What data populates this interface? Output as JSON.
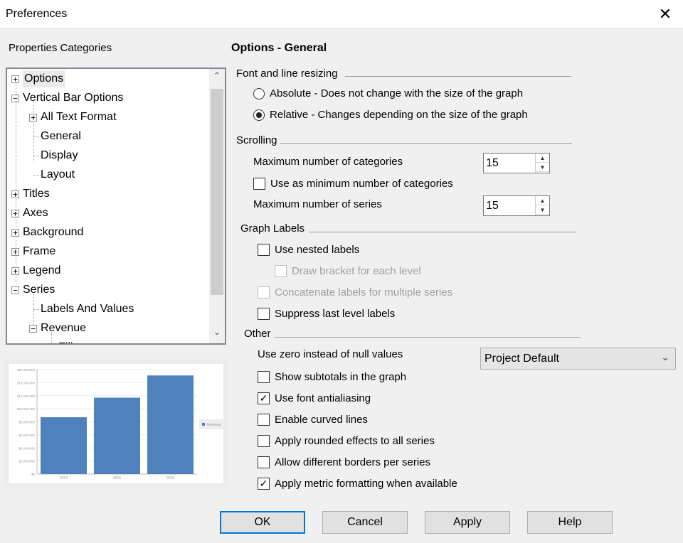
{
  "window": {
    "title": "Preferences"
  },
  "left": {
    "categories_label": "Properties Categories",
    "tree": [
      {
        "label": "Options",
        "expander": "+",
        "selected": true
      },
      {
        "label": "Vertical Bar Options",
        "expander": "-"
      },
      {
        "label": "All Text Format",
        "expander": "+"
      },
      {
        "label": "General"
      },
      {
        "label": "Display"
      },
      {
        "label": "Layout"
      },
      {
        "label": "Titles",
        "expander": "+"
      },
      {
        "label": "Axes",
        "expander": "+"
      },
      {
        "label": "Background",
        "expander": "+"
      },
      {
        "label": "Frame",
        "expander": "+"
      },
      {
        "label": "Legend",
        "expander": "+"
      },
      {
        "label": "Series",
        "expander": "-"
      },
      {
        "label": "Labels And Values"
      },
      {
        "label": "Revenue",
        "expander": "-"
      },
      {
        "label": "Fill"
      }
    ]
  },
  "preview_chart": {
    "type": "bar",
    "categories": [
      "2014",
      "2015",
      "2016"
    ],
    "series": [
      {
        "name": "Revenue",
        "values": [
          8700000,
          11700000,
          15100000
        ]
      }
    ],
    "yticks": [
      "$0",
      "$2,000,000",
      "$4,000,000",
      "$6,000,000",
      "$8,000,000",
      "$10,000,000",
      "$12,000,000",
      "$14,000,000",
      "$16,000,000"
    ],
    "ylim": [
      0,
      16000000
    ],
    "color": "#4f81bd",
    "legend": "right"
  },
  "right": {
    "heading": "Options - General",
    "font_section": "Font and line resizing",
    "radio_absolute": "Absolute - Does not change with the size of the graph",
    "radio_relative": "Relative - Changes depending on the size of the graph",
    "scrolling_section": "Scrolling",
    "max_categories_label": "Maximum number of categories",
    "max_categories_value": "15",
    "use_min_label": "Use as minimum number of categories",
    "max_series_label": "Maximum number of series",
    "max_series_value": "15",
    "graph_labels_section": "Graph Labels",
    "nested_label": "Use nested labels",
    "bracket_label": "Draw bracket for each level",
    "concat_label": "Concatenate labels for multiple series",
    "suppress_label": "Suppress last level labels",
    "other_section": "Other",
    "zero_null_label": "Use zero instead of null values",
    "zero_null_value": "Project Default",
    "subtotals_label": "Show subtotals in the graph",
    "antialias_label": "Use font antialiasing",
    "curved_label": "Enable curved lines",
    "rounded_label": "Apply rounded effects to all series",
    "borders_label": "Allow different borders per series",
    "metric_label": "Apply metric formatting when available"
  },
  "buttons": {
    "ok": "OK",
    "cancel": "Cancel",
    "apply": "Apply",
    "help": "Help"
  }
}
